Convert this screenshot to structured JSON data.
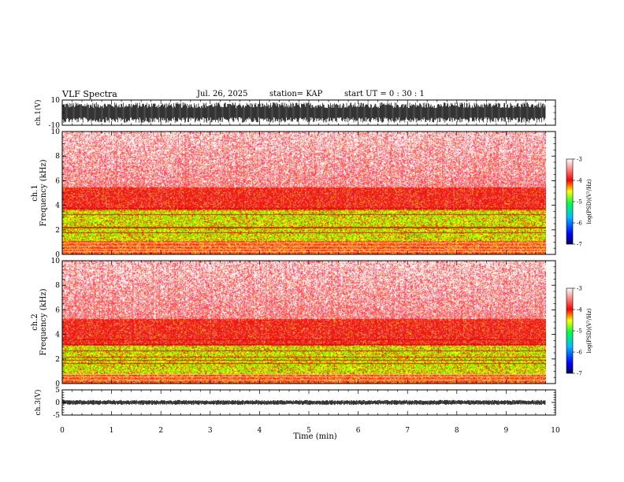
{
  "header": {
    "title": "VLF Spectra",
    "date": "Jul. 26, 2025",
    "station": "station= KAP",
    "start": "start UT =  0 : 30 : 1"
  },
  "colors": {
    "spec_high": "#ff0000",
    "spec_mid": "#ffff00",
    "spec_low": "#00ff00",
    "spec_min": "#0000ff",
    "trace": "#000000"
  },
  "chart_data": [
    {
      "type": "line",
      "name": "ch1-waveform",
      "ylabel": "ch.1(V)",
      "ylim": [
        -10,
        10
      ],
      "yticks": [
        10,
        -10
      ],
      "xlim": [
        0,
        10
      ]
    },
    {
      "type": "heatmap",
      "name": "ch1-spectrogram",
      "ylabel_channel": "ch.1",
      "ylabel": "Frequency (kHz)",
      "ylim": [
        0,
        10
      ],
      "yticks": [
        0,
        2,
        4,
        6,
        8,
        10
      ],
      "xlim": [
        0,
        9.8
      ],
      "bands": [
        {
          "from": 0,
          "to": 1.1,
          "level": "red"
        },
        {
          "from": 1.1,
          "to": 3.6,
          "level": "green-yellow"
        },
        {
          "from": 3.6,
          "to": 5.5,
          "level": "red"
        },
        {
          "from": 5.5,
          "to": 10,
          "level": "light-red"
        }
      ],
      "colorbar": {
        "label": "log(PSD)(V²/Hz)",
        "ticks": [
          -3,
          -4,
          -5,
          -6,
          -7
        ],
        "range": [
          -7,
          -3
        ]
      }
    },
    {
      "type": "heatmap",
      "name": "ch2-spectrogram",
      "ylabel_channel": "ch.2",
      "ylabel": "Frequency (kHz)",
      "ylim": [
        0,
        10
      ],
      "yticks": [
        0,
        2,
        4,
        6,
        8,
        10
      ],
      "xlim": [
        0,
        9.8
      ],
      "bands": [
        {
          "from": 0,
          "to": 0.8,
          "level": "red"
        },
        {
          "from": 0.8,
          "to": 3.1,
          "level": "green-yellow"
        },
        {
          "from": 3.1,
          "to": 5.3,
          "level": "red"
        },
        {
          "from": 5.3,
          "to": 10,
          "level": "light-red"
        }
      ],
      "colorbar": {
        "label": "log(PSD)(V²/Hz)",
        "ticks": [
          -3,
          -4,
          -5,
          -6,
          -7
        ],
        "range": [
          -7,
          -3
        ]
      }
    },
    {
      "type": "line",
      "name": "ch3-waveform",
      "ylabel": "ch.3(V)",
      "ylim": [
        -5,
        5
      ],
      "yticks": [
        5,
        0,
        -5
      ],
      "xlim": [
        0,
        10
      ],
      "xlabel": "Time (min)",
      "xticks": [
        0,
        1,
        2,
        3,
        4,
        5,
        6,
        7,
        8,
        9,
        10
      ]
    }
  ]
}
